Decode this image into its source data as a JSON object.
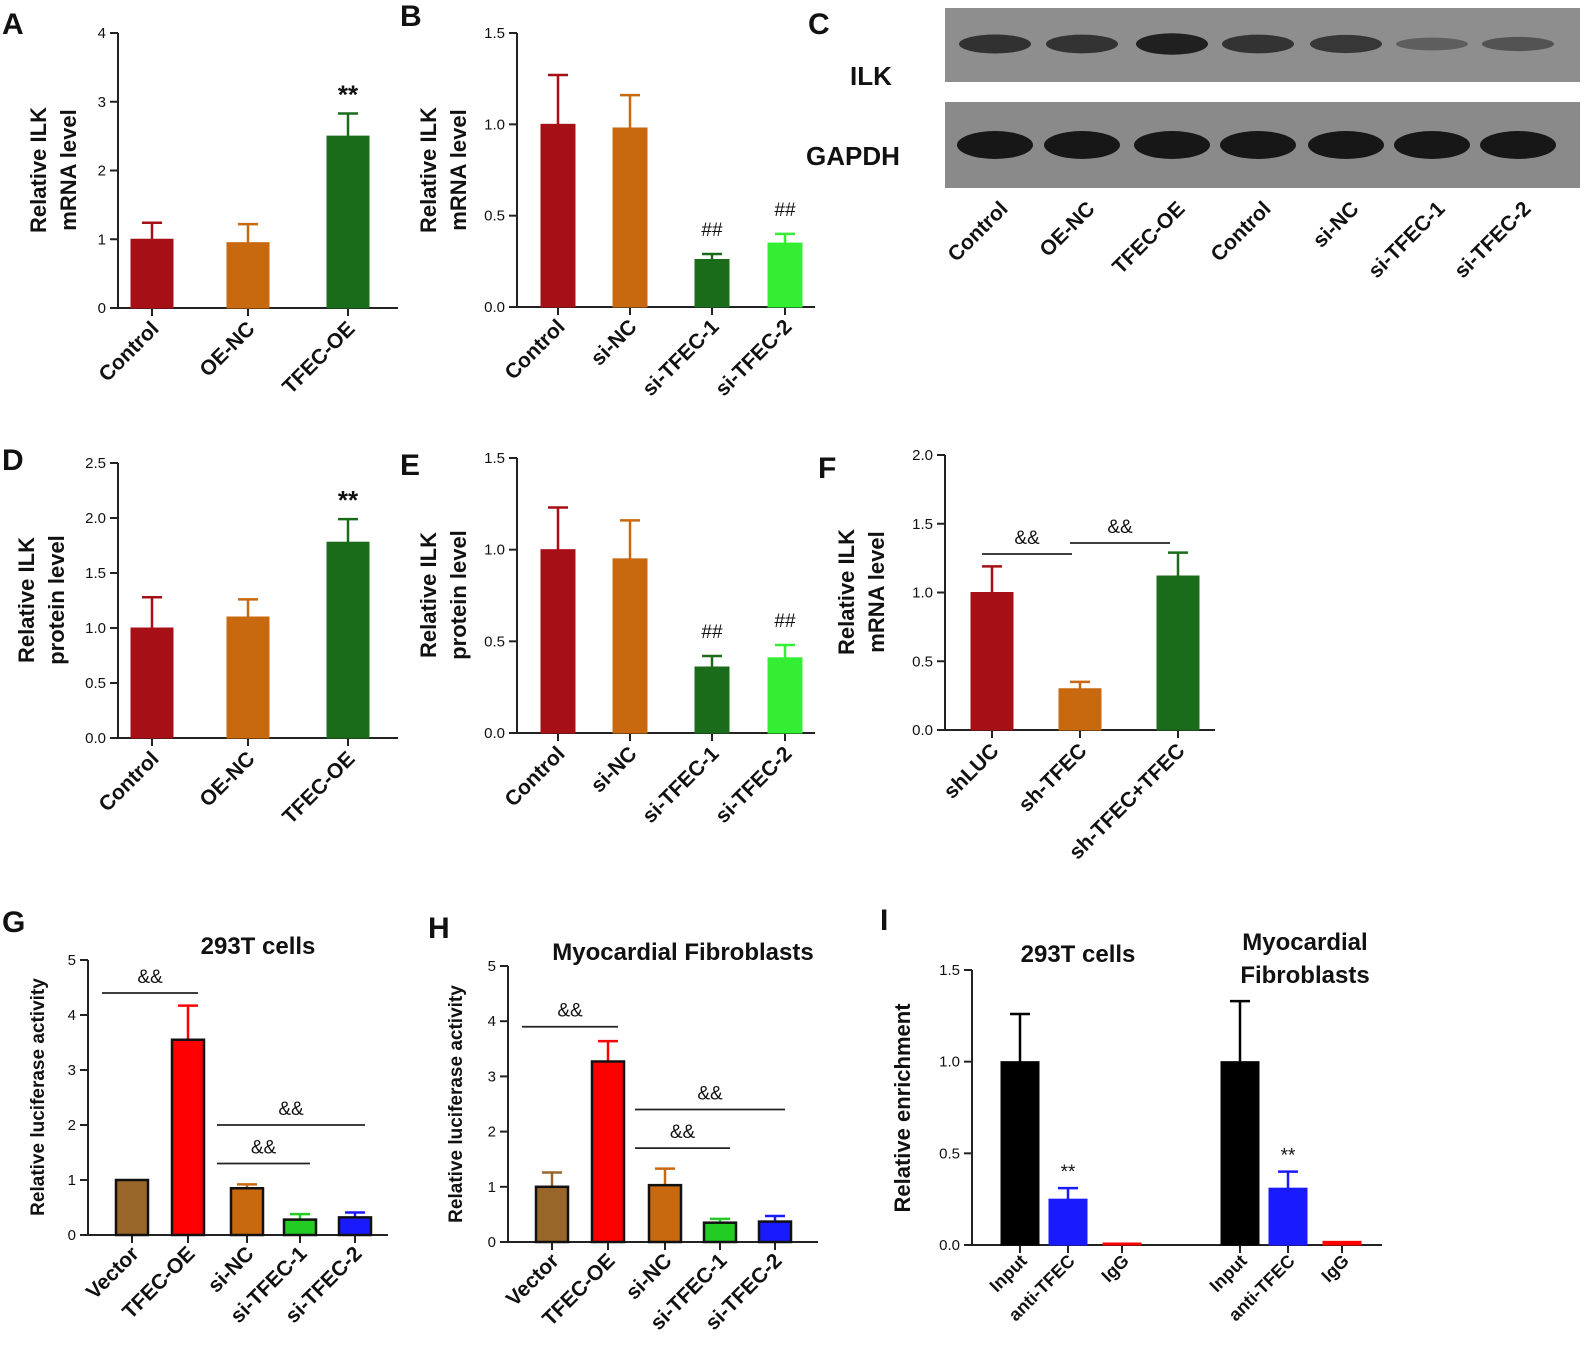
{
  "figure_labels": [
    "A",
    "B",
    "C",
    "D",
    "E",
    "F",
    "G",
    "H",
    "I"
  ],
  "blot": {
    "bands": [
      "ILK",
      "GAPDH"
    ],
    "lanes": [
      "Control",
      "OE-NC",
      "TFEC-OE",
      "Control",
      "si-NC",
      "si-TFEC-1",
      "si-TFEC-2"
    ],
    "ilk_intensity": [
      0.75,
      0.72,
      0.95,
      0.72,
      0.68,
      0.22,
      0.35
    ],
    "gapdh_intensity": [
      1,
      1,
      1,
      1,
      1,
      1,
      1
    ]
  },
  "chart_data": [
    {
      "id": "A",
      "type": "bar",
      "ylabel": [
        "Relative ILK",
        "mRNA level"
      ],
      "ylim": [
        0,
        4
      ],
      "yticks": [
        "0",
        "1",
        "2",
        "3",
        "4"
      ],
      "categories": [
        "Control",
        "OE-NC",
        "TFEC-OE"
      ],
      "values": [
        1.0,
        0.95,
        2.5
      ],
      "errors": [
        0.24,
        0.27,
        0.33
      ],
      "colors": [
        "#a50f15",
        "#c8680f",
        "#1a6b1a"
      ],
      "annotations": [
        "",
        "",
        "**"
      ]
    },
    {
      "id": "B",
      "type": "bar",
      "ylabel": [
        "Relative ILK",
        "mRNA level"
      ],
      "ylim": [
        0,
        1.5
      ],
      "yticks": [
        "0.0",
        "0.5",
        "1.0",
        "1.5"
      ],
      "categories": [
        "Control",
        "si-NC",
        "si-TFEC-1",
        "si-TFEC-2"
      ],
      "values": [
        1.0,
        0.98,
        0.26,
        0.35
      ],
      "errors": [
        0.27,
        0.18,
        0.03,
        0.05
      ],
      "colors": [
        "#a50f15",
        "#c8680f",
        "#1a6b1a",
        "#33ee33"
      ],
      "annotations": [
        "",
        "",
        "##",
        "##"
      ]
    },
    {
      "id": "D",
      "type": "bar",
      "ylabel": [
        "Relative ILK",
        "protein level"
      ],
      "ylim": [
        0,
        2.5
      ],
      "yticks": [
        "0.0",
        "0.5",
        "1.0",
        "1.5",
        "2.0",
        "2.5"
      ],
      "categories": [
        "Control",
        "OE-NC",
        "TFEC-OE"
      ],
      "values": [
        1.0,
        1.1,
        1.78
      ],
      "errors": [
        0.28,
        0.16,
        0.21
      ],
      "colors": [
        "#a50f15",
        "#c8680f",
        "#1a6b1a"
      ],
      "annotations": [
        "",
        "",
        "**"
      ]
    },
    {
      "id": "E",
      "type": "bar",
      "ylabel": [
        "Relative ILK",
        "protein level"
      ],
      "ylim": [
        0,
        1.5
      ],
      "yticks": [
        "0.0",
        "0.5",
        "1.0",
        "1.5"
      ],
      "categories": [
        "Control",
        "si-NC",
        "si-TFEC-1",
        "si-TFEC-2"
      ],
      "values": [
        1.0,
        0.95,
        0.36,
        0.41
      ],
      "errors": [
        0.23,
        0.21,
        0.06,
        0.07
      ],
      "colors": [
        "#a50f15",
        "#c8680f",
        "#1a6b1a",
        "#33ee33"
      ],
      "annotations": [
        "",
        "",
        "##",
        "##"
      ]
    },
    {
      "id": "F",
      "type": "bar",
      "ylabel": [
        "Relative ILK",
        "mRNA level"
      ],
      "ylim": [
        0,
        2.0
      ],
      "yticks": [
        "0.0",
        "0.5",
        "1.0",
        "1.5",
        "2.0"
      ],
      "categories": [
        "shLUC",
        "sh-TFEC",
        "sh-TFEC+TFEC"
      ],
      "values": [
        1.0,
        0.3,
        1.12
      ],
      "errors": [
        0.19,
        0.05,
        0.17
      ],
      "colors": [
        "#a50f15",
        "#c8680f",
        "#1a6b1a"
      ],
      "annotations": [
        "",
        "",
        ""
      ],
      "comparisons": [
        {
          "from": 0,
          "to": 1,
          "y": 1.28,
          "label": "&&"
        },
        {
          "from": 1,
          "to": 2,
          "y": 1.36,
          "label": "&&"
        }
      ]
    },
    {
      "id": "G",
      "type": "bar",
      "title": "293T cells",
      "ylabel": [
        "Relative luciferase activity"
      ],
      "ylim": [
        0,
        5
      ],
      "yticks": [
        "0",
        "1",
        "2",
        "3",
        "4",
        "5"
      ],
      "categories": [
        "Vector",
        "TFEC-OE",
        "si-NC",
        "si-TFEC-1",
        "si-TFEC-2"
      ],
      "values": [
        1.0,
        3.55,
        0.85,
        0.28,
        0.32
      ],
      "errors": [
        0.0,
        0.62,
        0.07,
        0.1,
        0.09
      ],
      "colors": [
        "#99662a",
        "#ff0000",
        "#c8680f",
        "#22cc22",
        "#1a1aff"
      ],
      "annotations": [
        "",
        "",
        "",
        "",
        ""
      ],
      "comparisons": [
        {
          "from": 0,
          "to": 1,
          "y": 4.4,
          "label": "&&"
        },
        {
          "from": 2,
          "to": 3,
          "y": 1.3,
          "label": "&&"
        },
        {
          "from": 2,
          "to": 4,
          "y": 2.0,
          "label": "&&"
        }
      ]
    },
    {
      "id": "H",
      "type": "bar",
      "title": "Myocardial Fibroblasts",
      "ylabel": [
        "Relative luciferase activity"
      ],
      "ylim": [
        0,
        5
      ],
      "yticks": [
        "0",
        "1",
        "2",
        "3",
        "4",
        "5"
      ],
      "categories": [
        "Vector",
        "TFEC-OE",
        "si-NC",
        "si-TFEC-1",
        "si-TFEC-2"
      ],
      "values": [
        1.0,
        3.27,
        1.03,
        0.35,
        0.37
      ],
      "errors": [
        0.26,
        0.37,
        0.3,
        0.07,
        0.1
      ],
      "colors": [
        "#99662a",
        "#ff0000",
        "#c8680f",
        "#22cc22",
        "#1a1aff"
      ],
      "annotations": [
        "",
        "",
        "",
        "",
        ""
      ],
      "comparisons": [
        {
          "from": 0,
          "to": 1,
          "y": 3.9,
          "label": "&&"
        },
        {
          "from": 2,
          "to": 3,
          "y": 1.7,
          "label": "&&"
        },
        {
          "from": 2,
          "to": 4,
          "y": 2.4,
          "label": "&&"
        }
      ]
    },
    {
      "id": "I",
      "type": "bar",
      "group_titles": [
        "293T cells",
        "Myocardial",
        "Fibroblasts"
      ],
      "ylabel": [
        "Relative enrichment"
      ],
      "ylim": [
        0,
        1.5
      ],
      "yticks": [
        "0.0",
        "0.5",
        "1.0",
        "1.5"
      ],
      "categories": [
        "Input",
        "anti-TFEC",
        "IgG",
        "Input",
        "anti-TFEC",
        "IgG"
      ],
      "values": [
        1.0,
        0.25,
        0.01,
        1.0,
        0.31,
        0.02
      ],
      "errors": [
        0.26,
        0.06,
        0.0,
        0.33,
        0.09,
        0.0
      ],
      "colors": [
        "#000000",
        "#1a1aff",
        "#ff0000",
        "#000000",
        "#1a1aff",
        "#ff0000"
      ],
      "annotations": [
        "",
        "**",
        "",
        "",
        "**",
        ""
      ]
    }
  ]
}
